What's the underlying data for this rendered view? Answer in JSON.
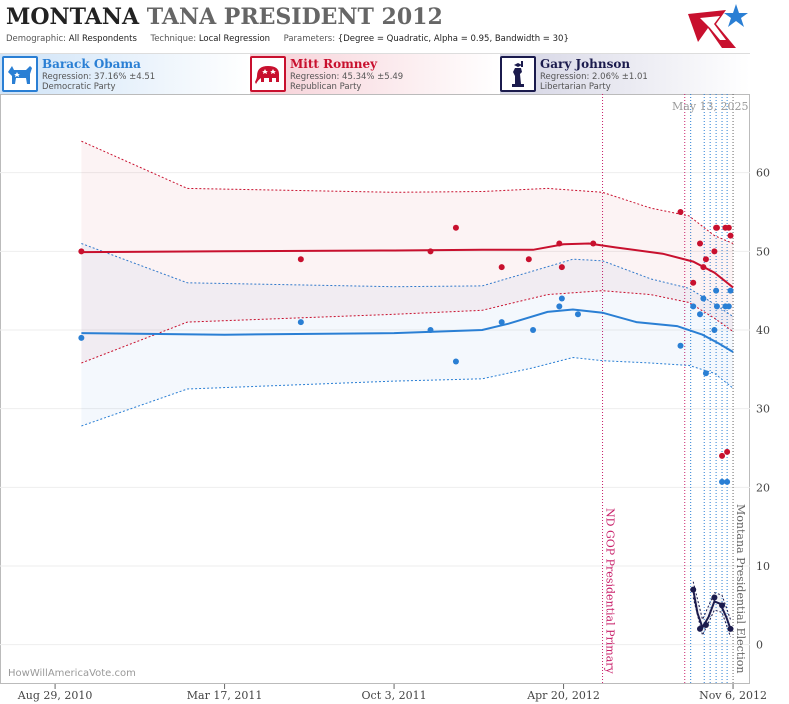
{
  "header": {
    "title_main": "MONTANA",
    "title_rest": "TANA PRESIDENT 2012",
    "demographic_label": "Demographic:",
    "demographic_value": "All Respondents",
    "technique_label": "Technique:",
    "technique_value": "Local Regression",
    "parameters_label": "Parameters:",
    "parameters_value": "{Degree = Quadratic, Alpha = 0.95, Bandwidth = 30}"
  },
  "candidates": [
    {
      "name": "Barack Obama",
      "regression": "Regression: 37.16% ±4.51",
      "party": "Democratic Party",
      "color": "#2a7fd4",
      "icon": "donkey-icon"
    },
    {
      "name": "Mitt Romney",
      "regression": "Regression: 45.34% ±5.49",
      "party": "Republican Party",
      "color": "#c8102e",
      "icon": "elephant-icon"
    },
    {
      "name": "Gary Johnson",
      "regression": "Regression: 2.06% ±1.01",
      "party": "Libertarian Party",
      "color": "#1b1b4d",
      "icon": "statue-of-liberty-icon"
    }
  ],
  "watermark": "HowWillAmericaVote.com",
  "date_stamp": "May 13, 2025",
  "colors": {
    "obama": "#2a7fd4",
    "romney": "#c8102e",
    "johnson": "#1b1b4d",
    "event": "#c8206a"
  },
  "chart_data": {
    "type": "scatter",
    "x_range": [
      "2010-06-25",
      "2012-11-26"
    ],
    "ylim": [
      -5,
      70
    ],
    "yticks": [
      0,
      10,
      20,
      30,
      40,
      50,
      60
    ],
    "xticks": [
      {
        "date": "2010-08-29",
        "label": "Aug 29, 2010"
      },
      {
        "date": "2011-03-17",
        "label": "Mar 17, 2011"
      },
      {
        "date": "2011-10-03",
        "label": "Oct 3, 2011"
      },
      {
        "date": "2012-04-20",
        "label": "Apr 20, 2012"
      },
      {
        "date": "2012-11-06",
        "label": "Nov 6, 2012"
      }
    ],
    "events": [
      {
        "date": "2012-06-05",
        "label": "ND GOP Presidential Primary",
        "color": "#c8206a",
        "style": "solid-dotted"
      },
      {
        "date": "2012-11-06",
        "label": "Montana Presidential Election",
        "color": "#666666",
        "style": "dotted"
      }
    ],
    "poll_lines": [
      "2012-09-10",
      "2012-09-17",
      "2012-10-03",
      "2012-10-10",
      "2012-10-17",
      "2012-10-24",
      "2012-10-30"
    ],
    "series": [
      {
        "name": "Barack Obama",
        "color": "#2a7fd4",
        "points": [
          [
            "2010-09-29",
            39
          ],
          [
            "2011-06-15",
            41
          ],
          [
            "2011-11-15",
            40
          ],
          [
            "2011-12-15",
            36
          ],
          [
            "2012-02-07",
            41
          ],
          [
            "2012-03-15",
            40
          ],
          [
            "2012-04-15",
            43
          ],
          [
            "2012-04-18",
            44
          ],
          [
            "2012-05-07",
            42
          ],
          [
            "2012-09-05",
            38
          ],
          [
            "2012-09-20",
            43
          ],
          [
            "2012-09-28",
            42
          ],
          [
            "2012-10-02",
            44
          ],
          [
            "2012-10-05",
            34.5
          ],
          [
            "2012-10-15",
            40
          ],
          [
            "2012-10-17",
            45
          ],
          [
            "2012-10-18",
            43
          ],
          [
            "2012-10-24",
            20.7
          ],
          [
            "2012-10-28",
            43
          ],
          [
            "2012-10-30",
            20.7
          ],
          [
            "2012-11-01",
            43
          ],
          [
            "2012-11-03",
            45
          ]
        ],
        "trend": [
          [
            "2010-09-29",
            39.6
          ],
          [
            "2011-03-17",
            39.4
          ],
          [
            "2011-10-03",
            39.6
          ],
          [
            "2012-01-15",
            40
          ],
          [
            "2012-02-15",
            40.8
          ],
          [
            "2012-04-01",
            42.3
          ],
          [
            "2012-05-01",
            42.6
          ],
          [
            "2012-06-05",
            42.2
          ],
          [
            "2012-07-15",
            41
          ],
          [
            "2012-09-01",
            40.5
          ],
          [
            "2012-10-01",
            39.4
          ],
          [
            "2012-10-20",
            38.3
          ],
          [
            "2012-11-06",
            37.2
          ]
        ],
        "band_upper": [
          [
            "2010-09-29",
            51
          ],
          [
            "2011-02-01",
            46
          ],
          [
            "2011-10-03",
            45.5
          ],
          [
            "2012-01-15",
            45.6
          ],
          [
            "2012-03-15",
            47.5
          ],
          [
            "2012-05-01",
            49
          ],
          [
            "2012-06-05",
            48.8
          ],
          [
            "2012-08-01",
            46.5
          ],
          [
            "2012-09-15",
            45.3
          ],
          [
            "2012-10-15",
            43.3
          ],
          [
            "2012-11-06",
            41.7
          ]
        ],
        "band_lower": [
          [
            "2010-09-29",
            27.8
          ],
          [
            "2011-02-01",
            32.5
          ],
          [
            "2011-10-03",
            33.5
          ],
          [
            "2012-01-15",
            33.8
          ],
          [
            "2012-03-15",
            35.2
          ],
          [
            "2012-05-01",
            36.5
          ],
          [
            "2012-06-05",
            36.1
          ],
          [
            "2012-08-01",
            35.8
          ],
          [
            "2012-09-15",
            35.5
          ],
          [
            "2012-10-15",
            34.5
          ],
          [
            "2012-11-06",
            32.6
          ]
        ]
      },
      {
        "name": "Mitt Romney",
        "color": "#c8102e",
        "points": [
          [
            "2010-09-29",
            50
          ],
          [
            "2011-06-15",
            49
          ],
          [
            "2011-11-15",
            50
          ],
          [
            "2011-12-15",
            53
          ],
          [
            "2012-02-07",
            48
          ],
          [
            "2012-03-10",
            49
          ],
          [
            "2012-04-15",
            51
          ],
          [
            "2012-04-18",
            48
          ],
          [
            "2012-05-25",
            51
          ],
          [
            "2012-09-05",
            55
          ],
          [
            "2012-09-20",
            46
          ],
          [
            "2012-09-28",
            51
          ],
          [
            "2012-10-02",
            48
          ],
          [
            "2012-10-05",
            49
          ],
          [
            "2012-10-15",
            50
          ],
          [
            "2012-10-17",
            53
          ],
          [
            "2012-10-18",
            53
          ],
          [
            "2012-10-24",
            24
          ],
          [
            "2012-10-28",
            53
          ],
          [
            "2012-10-30",
            24.5
          ],
          [
            "2012-11-01",
            53
          ],
          [
            "2012-11-03",
            52
          ]
        ],
        "trend": [
          [
            "2010-09-29",
            49.9
          ],
          [
            "2011-03-17",
            50
          ],
          [
            "2011-10-03",
            50.1
          ],
          [
            "2012-01-15",
            50.2
          ],
          [
            "2012-03-15",
            50.2
          ],
          [
            "2012-04-20",
            50.9
          ],
          [
            "2012-05-20",
            51
          ],
          [
            "2012-06-20",
            50.5
          ],
          [
            "2012-08-15",
            49.7
          ],
          [
            "2012-09-20",
            48.7
          ],
          [
            "2012-10-15",
            47.3
          ],
          [
            "2012-11-06",
            45.4
          ]
        ],
        "band_upper": [
          [
            "2010-09-29",
            64
          ],
          [
            "2011-02-01",
            58
          ],
          [
            "2011-10-03",
            57.5
          ],
          [
            "2012-01-15",
            57.6
          ],
          [
            "2012-04-01",
            58
          ],
          [
            "2012-06-05",
            57.5
          ],
          [
            "2012-08-01",
            55.5
          ],
          [
            "2012-09-15",
            54.5
          ],
          [
            "2012-10-15",
            52
          ],
          [
            "2012-11-06",
            51
          ]
        ],
        "band_lower": [
          [
            "2010-09-29",
            35.8
          ],
          [
            "2011-02-01",
            41
          ],
          [
            "2011-10-03",
            42
          ],
          [
            "2012-01-15",
            42.5
          ],
          [
            "2012-04-01",
            44.5
          ],
          [
            "2012-06-05",
            45
          ],
          [
            "2012-08-01",
            44.5
          ],
          [
            "2012-09-15",
            43.5
          ],
          [
            "2012-10-15",
            41.5
          ],
          [
            "2012-11-06",
            39.8
          ]
        ]
      },
      {
        "name": "Gary Johnson",
        "color": "#1b1b4d",
        "points": [
          [
            "2012-09-20",
            7
          ],
          [
            "2012-09-28",
            2
          ],
          [
            "2012-10-05",
            2.5
          ],
          [
            "2012-10-15",
            6
          ],
          [
            "2012-10-24",
            5
          ],
          [
            "2012-11-03",
            2
          ]
        ],
        "trend": [
          [
            "2012-09-20",
            7
          ],
          [
            "2012-09-25",
            4
          ],
          [
            "2012-10-01",
            2.2
          ],
          [
            "2012-10-08",
            3.5
          ],
          [
            "2012-10-15",
            5.5
          ],
          [
            "2012-10-22",
            5.2
          ],
          [
            "2012-10-29",
            3.5
          ],
          [
            "2012-11-03",
            2
          ]
        ],
        "band_upper": [
          [
            "2012-09-20",
            8
          ],
          [
            "2012-10-01",
            3.2
          ],
          [
            "2012-10-15",
            6.6
          ],
          [
            "2012-10-24",
            6.3
          ],
          [
            "2012-11-03",
            3.2
          ]
        ],
        "band_lower": [
          [
            "2012-09-20",
            6
          ],
          [
            "2012-10-01",
            1.2
          ],
          [
            "2012-10-15",
            4.4
          ],
          [
            "2012-10-24",
            4.1
          ],
          [
            "2012-11-03",
            1
          ]
        ]
      }
    ]
  }
}
